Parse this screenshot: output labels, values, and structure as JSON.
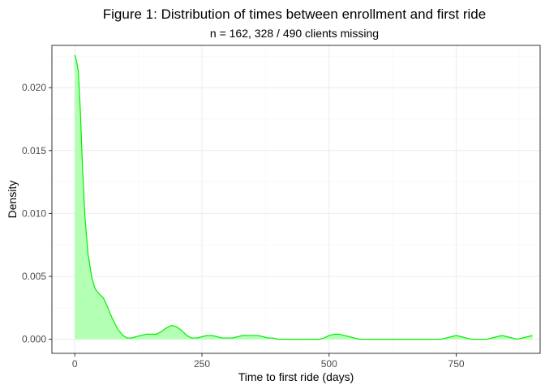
{
  "chart_data": {
    "type": "area",
    "title": "Figure 1: Distribution of times between enrollment and first ride",
    "subtitle": "n = 162, 328 / 490 clients missing",
    "xlabel": "Time to first ride (days)",
    "ylabel": "Density",
    "xlim": [
      -45,
      915
    ],
    "ylim": [
      -0.00112,
      0.02336
    ],
    "x_ticks": [
      0,
      250,
      500,
      750
    ],
    "x_tick_labels": [
      "0",
      "250",
      "500",
      "750"
    ],
    "y_ticks": [
      0,
      0.005,
      0.01,
      0.015,
      0.02
    ],
    "y_tick_labels": [
      "0.000",
      "0.005",
      "0.010",
      "0.015",
      "0.020"
    ],
    "grid": true,
    "legend": "none",
    "colors": {
      "line": "#00ee00",
      "fill": "#b3ffb3",
      "panel_border": "#333333",
      "grid_major": "#ebebeb",
      "grid_minor": "#f5f5f5"
    },
    "series": [
      {
        "x": [
          0,
          3,
          7,
          11,
          15,
          20,
          26,
          33,
          40,
          48,
          56,
          63,
          70,
          78,
          86,
          95,
          103,
          112,
          120,
          130,
          140,
          150,
          160,
          170,
          180,
          190,
          200,
          210,
          220,
          230,
          240,
          250,
          260,
          270,
          280,
          290,
          300,
          310,
          320,
          330,
          340,
          350,
          360,
          370,
          380,
          390,
          400,
          410,
          420,
          430,
          440,
          450,
          460,
          470,
          480,
          490,
          500,
          510,
          520,
          530,
          540,
          550,
          560,
          580,
          600,
          620,
          640,
          660,
          680,
          700,
          710,
          720,
          730,
          740,
          750,
          760,
          770,
          780,
          790,
          800,
          810,
          820,
          830,
          840,
          850,
          860,
          870,
          880,
          890,
          900
        ],
        "y": [
          0.0226,
          0.0222,
          0.0213,
          0.0181,
          0.0138,
          0.0097,
          0.0068,
          0.005,
          0.004,
          0.0036,
          0.0033,
          0.0027,
          0.002,
          0.0013,
          0.0007,
          0.0003,
          0.0001,
          0.0001,
          0.0002,
          0.0003,
          0.0004,
          0.0004,
          0.0004,
          0.0006,
          0.0009,
          0.0011,
          0.001,
          0.0007,
          0.0003,
          0.0001,
          0.0001,
          0.0002,
          0.0003,
          0.0003,
          0.0002,
          0.0001,
          0.0001,
          0.0001,
          0.0002,
          0.0003,
          0.0003,
          0.0003,
          0.0003,
          0.0002,
          0.0001,
          0.0001,
          0.0,
          0.0,
          0.0,
          0.0,
          0.0,
          0.0,
          0.0,
          0.0,
          0.0,
          0.0001,
          0.0003,
          0.0004,
          0.0004,
          0.0003,
          0.0002,
          0.0001,
          0.0,
          0.0,
          0.0,
          0.0,
          0.0,
          0.0,
          0.0,
          0.0,
          0.0,
          0.0,
          0.0001,
          0.0002,
          0.0003,
          0.0002,
          0.0001,
          0.0,
          0.0,
          0.0,
          0.0,
          0.0001,
          0.0002,
          0.0003,
          0.0002,
          0.0001,
          0.0,
          0.0001,
          0.0002,
          0.0003
        ]
      }
    ]
  }
}
